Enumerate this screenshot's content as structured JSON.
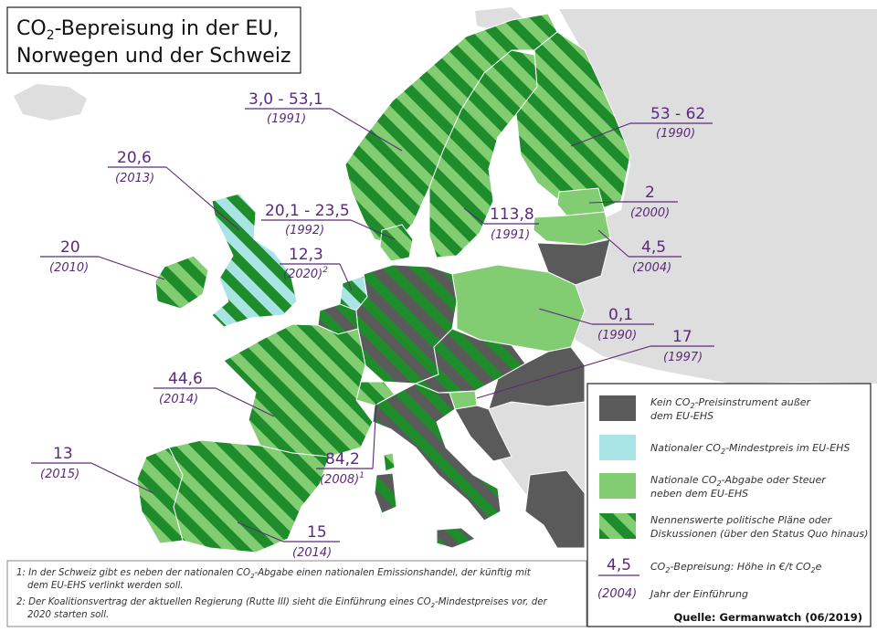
{
  "title": {
    "line1_prefix": "CO",
    "line1_sub": "2",
    "line1_rest": "-Bepreisung in der EU,",
    "line2": "Norwegen und der Schweiz"
  },
  "colors": {
    "sea": "#ffffff",
    "nonEu": "#dedede",
    "none": "#5a5a5a",
    "minPrice": "#a9e4e4",
    "tax": "#82cc72",
    "stripe": "#1e8c2b",
    "label": "#5a2a7a"
  },
  "callouts": [
    {
      "id": "norway",
      "value": "3,0 - 53,1",
      "year": "(1991)"
    },
    {
      "id": "finland",
      "value": "53 - 62",
      "year": "(1990)"
    },
    {
      "id": "uk",
      "value": "20,6",
      "year": "(2013)"
    },
    {
      "id": "denmark",
      "value": "20,1 - 23,5",
      "year": "(1992)"
    },
    {
      "id": "sweden",
      "value": "113,8",
      "year": "(1991)"
    },
    {
      "id": "estonia",
      "value": "2",
      "year": "(2000)"
    },
    {
      "id": "ireland",
      "value": "20",
      "year": "(2010)"
    },
    {
      "id": "netherlands",
      "value": "12,3",
      "year": "(2020)",
      "year_sup": "2"
    },
    {
      "id": "latvia",
      "value": "4,5",
      "year": "(2004)"
    },
    {
      "id": "poland",
      "value": "0,1",
      "year": "(1990)"
    },
    {
      "id": "slovenia",
      "value": "17",
      "year": "(1997)"
    },
    {
      "id": "france",
      "value": "44,6",
      "year": "(2014)"
    },
    {
      "id": "switzerland",
      "value": "84,2",
      "year": "(2008)",
      "year_sup": "1"
    },
    {
      "id": "portugal",
      "value": "13",
      "year": "(2015)"
    },
    {
      "id": "spain",
      "value": "15",
      "year": "(2014)"
    }
  ],
  "legend": {
    "none_l1_a": "Kein CO",
    "none_l1_sub": "2",
    "none_l1_b": "-Preisinstrument außer",
    "none_l2": "dem EU-EHS",
    "min_a": "Nationaler CO",
    "min_sub": "2",
    "min_b": "-Mindestpreis im EU-EHS",
    "tax_l1_a": "Nationale CO",
    "tax_l1_sub": "2",
    "tax_l1_b": "-Abgabe oder Steuer",
    "tax_l2": "neben dem EU-EHS",
    "plans_l1": "Nennenswerte politische Pläne oder",
    "plans_l2": "Diskussionen (über den Status Quo hinaus)",
    "sample_value": "4,5",
    "sample_year": "(2004)",
    "price_a": "CO",
    "price_sub": "2",
    "price_b": "-Bepreisung: Höhe in €/t CO",
    "price_sub2": "2",
    "price_c": "e",
    "year_desc": "Jahr der Einführung"
  },
  "footnotes": {
    "n1_l1_a": "1:  In der Schweiz gibt es neben der nationalen CO",
    "n1_l1_sub": "2",
    "n1_l1_b": "-Abgabe einen nationalen Emissionshandel, der künftig mit",
    "n1_l2": "dem EU-EHS verlinkt werden soll.",
    "n2_l1_a": "2:  Der Koalitionsvertrag der aktuellen Regierung (Rutte III) sieht die Einführung eines CO",
    "n2_l1_sub": "2",
    "n2_l1_b": "-Mindestpreises vor, der",
    "n2_l2": "2020 starten soll."
  },
  "source": "Quelle: Germanwatch (06/2019)"
}
